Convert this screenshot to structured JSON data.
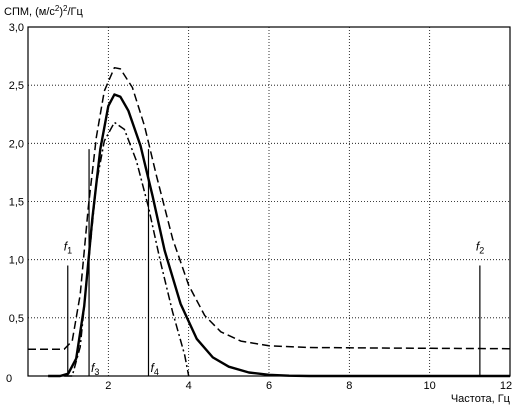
{
  "chart_data": {
    "type": "line",
    "ylabel_text": "СПМ, (м/с",
    "ylabel_sup": "2",
    "ylabel_text2": ")",
    "ylabel_sup2": "2",
    "ylabel_text3": "/Гц",
    "xlabel": "Частота, Гц",
    "xlim": [
      0,
      12
    ],
    "ylim": [
      0,
      3.0
    ],
    "grid": true,
    "x_ticks": [
      0,
      2,
      4,
      6,
      8,
      10,
      12
    ],
    "x_tick_labels": [
      "0",
      "2",
      "4",
      "6",
      "8",
      "10",
      "12"
    ],
    "y_ticks": [
      0.5,
      1.0,
      1.5,
      2.0,
      2.5,
      3.0
    ],
    "y_tick_labels": [
      "0,5",
      "1,0",
      "1,5",
      "2,0",
      "2,5",
      "3,0"
    ],
    "y_zero_label": "0",
    "series": [
      {
        "style": "solid",
        "points": [
          [
            0.5,
            0.0
          ],
          [
            0.8,
            0.0
          ],
          [
            1.0,
            0.02
          ],
          [
            1.2,
            0.15
          ],
          [
            1.4,
            0.6
          ],
          [
            1.6,
            1.35
          ],
          [
            1.8,
            1.95
          ],
          [
            2.0,
            2.32
          ],
          [
            2.15,
            2.42
          ],
          [
            2.3,
            2.4
          ],
          [
            2.5,
            2.28
          ],
          [
            2.8,
            1.98
          ],
          [
            3.1,
            1.55
          ],
          [
            3.4,
            1.08
          ],
          [
            3.8,
            0.62
          ],
          [
            4.2,
            0.32
          ],
          [
            4.6,
            0.16
          ],
          [
            5.0,
            0.08
          ],
          [
            5.5,
            0.03
          ],
          [
            6.0,
            0.01
          ],
          [
            6.5,
            0.003
          ],
          [
            7.0,
            0.0
          ],
          [
            12.0,
            0.0
          ]
        ]
      },
      {
        "style": "dashed",
        "points": [
          [
            0.0,
            0.23
          ],
          [
            0.9,
            0.23
          ],
          [
            1.1,
            0.3
          ],
          [
            1.3,
            0.7
          ],
          [
            1.5,
            1.45
          ],
          [
            1.7,
            2.05
          ],
          [
            1.9,
            2.45
          ],
          [
            2.15,
            2.65
          ],
          [
            2.3,
            2.64
          ],
          [
            2.6,
            2.48
          ],
          [
            2.9,
            2.15
          ],
          [
            3.2,
            1.72
          ],
          [
            3.6,
            1.18
          ],
          [
            4.0,
            0.78
          ],
          [
            4.4,
            0.52
          ],
          [
            4.8,
            0.38
          ],
          [
            5.3,
            0.3
          ],
          [
            6.0,
            0.26
          ],
          [
            7.0,
            0.245
          ],
          [
            9.0,
            0.24
          ],
          [
            12.0,
            0.235
          ]
        ]
      },
      {
        "style": "dashdot",
        "points": [
          [
            0.9,
            0.0
          ],
          [
            1.1,
            0.0
          ],
          [
            1.3,
            0.25
          ],
          [
            1.5,
            0.95
          ],
          [
            1.7,
            1.65
          ],
          [
            1.9,
            2.02
          ],
          [
            2.15,
            2.18
          ],
          [
            2.4,
            2.12
          ],
          [
            2.7,
            1.85
          ],
          [
            3.0,
            1.45
          ],
          [
            3.3,
            0.98
          ],
          [
            3.6,
            0.55
          ],
          [
            3.9,
            0.18
          ],
          [
            4.0,
            0.0
          ]
        ]
      }
    ],
    "markers": [
      {
        "symbol": "f",
        "sub": "1",
        "x": 0.99,
        "top": 0.95,
        "label_y": 1.08,
        "label_pos": "top"
      },
      {
        "symbol": "f",
        "sub": "2",
        "x": 11.25,
        "top": 0.95,
        "label_y": 1.08,
        "label_pos": "top"
      },
      {
        "symbol": "f",
        "sub": "3",
        "x": 1.52,
        "top": 1.95,
        "label_y": 0.08,
        "label_pos": "bottom"
      },
      {
        "symbol": "f",
        "sub": "4",
        "x": 3.0,
        "top": 1.95,
        "label_y": 0.08,
        "label_pos": "bottom"
      }
    ]
  }
}
